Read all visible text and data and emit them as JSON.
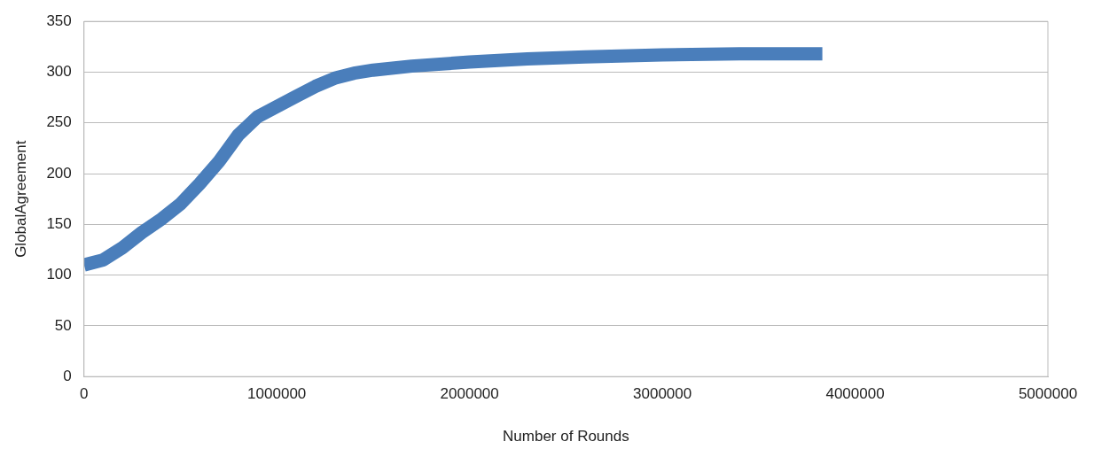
{
  "chart_data": {
    "type": "line",
    "xlabel": "Number of Rounds",
    "ylabel": "GlobalAgreement",
    "x": [
      0,
      100000,
      200000,
      300000,
      400000,
      500000,
      600000,
      700000,
      800000,
      900000,
      1000000,
      1100000,
      1200000,
      1300000,
      1400000,
      1500000,
      1700000,
      2000000,
      2300000,
      2600000,
      3000000,
      3400000,
      3830000
    ],
    "series": [
      {
        "color": "#4a7ebb",
        "values": [
          110,
          115,
          127,
          142,
          155,
          170,
          190,
          212,
          238,
          256,
          266,
          276,
          286,
          294,
          299,
          302,
          306,
          310,
          313,
          315,
          317,
          318,
          318
        ]
      }
    ],
    "xlim": [
      0,
      5000000
    ],
    "xticks": [
      0,
      1000000,
      2000000,
      3000000,
      4000000,
      5000000
    ],
    "ylim": [
      0,
      350
    ],
    "yticks": [
      0,
      50,
      100,
      150,
      200,
      250,
      300,
      350
    ],
    "grid": "y",
    "legend": false,
    "marker": "none",
    "line_style": "solid"
  }
}
